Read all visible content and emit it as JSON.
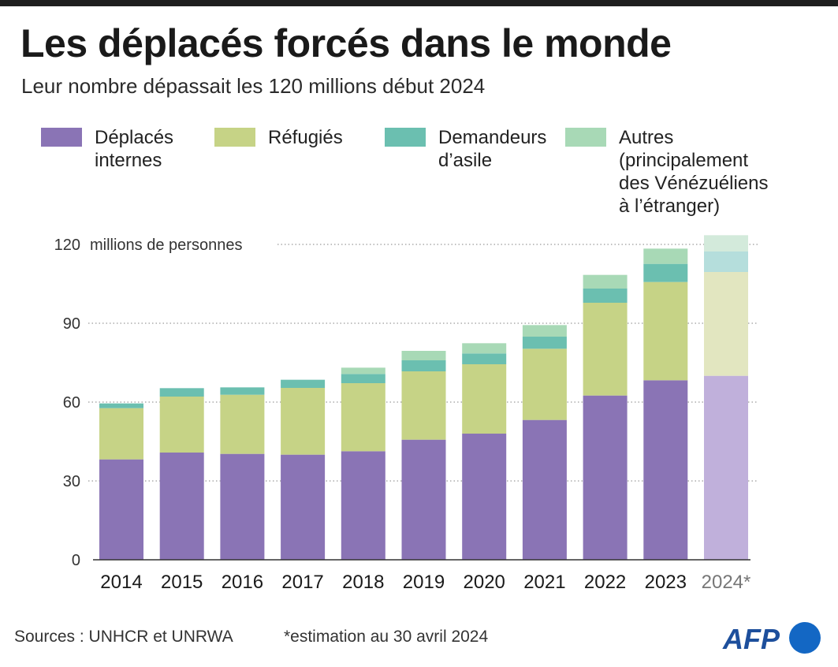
{
  "header": {
    "title": "Les déplacés forcés dans le monde",
    "subtitle": "Leur nombre dépassait les 120 millions début 2024"
  },
  "legend": [
    {
      "label": "Déplacés\ninternes",
      "color": "#8a74b5"
    },
    {
      "label": "Réfugiés",
      "color": "#c6d386"
    },
    {
      "label": "Demandeurs\nd’asile",
      "color": "#6bbfb0"
    },
    {
      "label": "Autres\n(principalement\ndes Vénézuéliens\nà l’étranger)",
      "color": "#a8d9b6"
    }
  ],
  "chart_data": {
    "type": "bar",
    "stacked": true,
    "categories": [
      "2014",
      "2015",
      "2016",
      "2017",
      "2018",
      "2019",
      "2020",
      "2021",
      "2022",
      "2023",
      "2024*"
    ],
    "unit_label": "millions de personnes",
    "ylim": [
      0,
      120
    ],
    "yticks": [
      0,
      30,
      60,
      90,
      120
    ],
    "grid": true,
    "legend_position": "top",
    "estimated_category": "2024*",
    "estimated_colors": [
      "#c0b0db",
      "#e2e6c0",
      "#b5dedc",
      "#d3eadb"
    ],
    "series": [
      {
        "name": "Déplacés internes",
        "color": "#8a74b5",
        "values": [
          38.2,
          40.8,
          40.3,
          40.0,
          41.3,
          45.7,
          48.0,
          53.2,
          62.5,
          68.3,
          70.0
        ]
      },
      {
        "name": "Réfugiés",
        "color": "#c6d386",
        "values": [
          19.5,
          21.3,
          22.5,
          25.4,
          25.9,
          26.0,
          26.4,
          27.1,
          35.3,
          37.4,
          39.5
        ]
      },
      {
        "name": "Demandeurs d’asile",
        "color": "#6bbfb0",
        "values": [
          1.8,
          3.2,
          2.8,
          3.1,
          3.5,
          4.2,
          4.1,
          4.6,
          5.4,
          6.9,
          7.8
        ]
      },
      {
        "name": "Autres (principalement des Vénézuéliens à l’étranger)",
        "color": "#a8d9b6",
        "values": [
          0,
          0,
          0,
          0,
          2.4,
          3.6,
          3.9,
          4.4,
          5.2,
          5.8,
          6.2
        ]
      }
    ]
  },
  "footer": {
    "sources": "Sources : UNHCR et UNRWA",
    "note": "*estimation au 30 avril 2024",
    "logo_text": "AFP"
  }
}
